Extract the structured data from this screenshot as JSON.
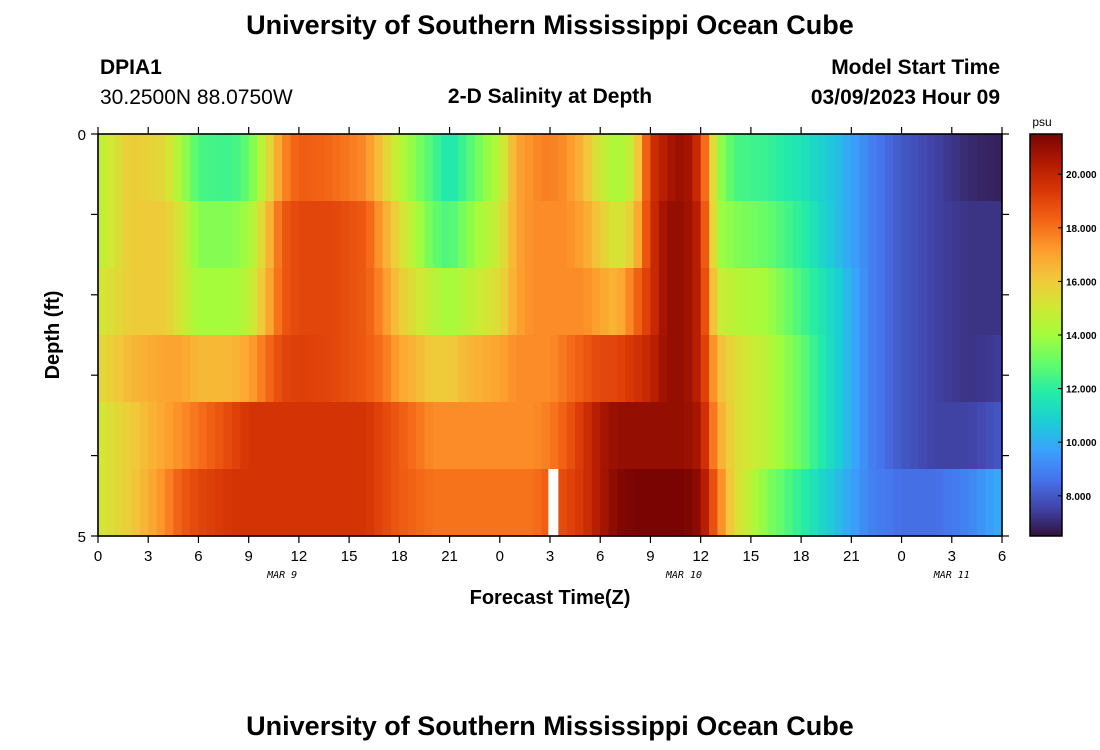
{
  "header": {
    "title": "University of Southern Mississippi Ocean Cube",
    "station_id": "DPIA1",
    "station_coords": "30.2500N  88.0750W",
    "subtitle": "2-D Salinity at Depth",
    "model_start_label": "Model Start Time",
    "model_start_value": "03/09/2023 Hour 09"
  },
  "footer": {
    "title": "University of Southern Mississippi Ocean Cube"
  },
  "chart_data": {
    "type": "heatmap",
    "xlabel": "Forecast Time(Z)",
    "ylabel": "Depth (ft)",
    "x_tick_labels": [
      "0",
      "3",
      "6",
      "9",
      "12",
      "15",
      "18",
      "21",
      "0",
      "3",
      "6",
      "9",
      "12",
      "15",
      "18",
      "21",
      "0",
      "3",
      "6"
    ],
    "date_labels": [
      {
        "label": "MAR 9",
        "hour": 11
      },
      {
        "label": "MAR 10",
        "hour": 35
      },
      {
        "label": "MAR 11",
        "hour": 51
      }
    ],
    "x_range_hours": [
      0,
      54
    ],
    "y_tick_labels": [
      "0",
      "5"
    ],
    "ylim": [
      0,
      5
    ],
    "depth_bins_ft": [
      0.25,
      1.0,
      2.0,
      3.0,
      4.0,
      4.75
    ],
    "colorbar": {
      "unit": "psu",
      "range": [
        6.5,
        21.5
      ],
      "tick_labels": [
        "8.000",
        "10.000",
        "12.000",
        "14.000",
        "16.000",
        "18.000",
        "20.000"
      ],
      "tick_values": [
        8,
        10,
        12,
        14,
        16,
        18,
        20
      ],
      "colors": [
        "#30123b",
        "#4145ab",
        "#4675ed",
        "#39a2fc",
        "#1bcfd4",
        "#24eca6",
        "#61fc6c",
        "#a4fc3b",
        "#d1e834",
        "#f3c63a",
        "#fe9b2d",
        "#f36315",
        "#d93806",
        "#b11901",
        "#7a0402"
      ]
    },
    "time_nodes_hours": [
      0,
      2,
      4,
      5,
      6,
      8,
      9,
      10,
      11,
      12,
      14,
      16,
      17,
      18,
      20,
      21,
      22,
      24,
      25,
      26,
      27,
      28,
      29,
      30,
      31,
      32,
      33,
      34,
      35,
      36,
      37,
      38,
      40,
      42,
      44,
      46,
      48,
      50,
      52,
      54
    ],
    "salinity_psu": [
      [
        14.5,
        16,
        15.5,
        14,
        12.5,
        12.3,
        13,
        15,
        17.5,
        18.5,
        18.2,
        17.5,
        16,
        14.5,
        12.5,
        11.5,
        12.5,
        14.5,
        17,
        17.5,
        17.8,
        17.4,
        16.5,
        15,
        14,
        15,
        19.5,
        20.5,
        21,
        19.5,
        14,
        12.5,
        12.2,
        11.5,
        10.5,
        9,
        8,
        7.5,
        7,
        6.8
      ],
      [
        14.5,
        16,
        16,
        15,
        13.5,
        13.5,
        14,
        16,
        18.5,
        19,
        19,
        18.5,
        17,
        15.5,
        13,
        12.5,
        13.5,
        15,
        17,
        17.5,
        17.5,
        17.5,
        17,
        16,
        15,
        16,
        19.5,
        21,
        21,
        20,
        14,
        13.5,
        13,
        12,
        10.5,
        9,
        8,
        7.5,
        7.2,
        7.2
      ],
      [
        15,
        16,
        16,
        15,
        14,
        14,
        14.5,
        16.5,
        18.5,
        19,
        19,
        18.5,
        17.5,
        16,
        14.5,
        14,
        14.5,
        15.5,
        17,
        17.5,
        17.5,
        17.5,
        17.5,
        17,
        16.5,
        18,
        19.5,
        21,
        21,
        20,
        15,
        14.5,
        14,
        12.5,
        11,
        9,
        8,
        7.5,
        7.2,
        7.2
      ],
      [
        15.5,
        16.5,
        17,
        17,
        16.5,
        16.5,
        17,
        18,
        19,
        19.2,
        19,
        18.5,
        18,
        17,
        16,
        16,
        16.5,
        17,
        17.5,
        17.5,
        17.5,
        18,
        18.5,
        19,
        19,
        19.5,
        20,
        21,
        21,
        20,
        16.5,
        15.5,
        14.5,
        13,
        11,
        9,
        8,
        7.5,
        7.2,
        7.4
      ],
      [
        15,
        16,
        17,
        17.5,
        18,
        19,
        19.5,
        19.5,
        19.5,
        19.5,
        19.5,
        19.5,
        19,
        18.5,
        17.5,
        17.5,
        17.5,
        17.5,
        17.5,
        17.5,
        17.8,
        18.5,
        19.5,
        20.5,
        21,
        21,
        21,
        21,
        21,
        20.5,
        17,
        15.5,
        14.5,
        13,
        11,
        9,
        8,
        7.5,
        7.5,
        8
      ],
      [
        15,
        16,
        17.5,
        18.5,
        19,
        19.5,
        19.5,
        19.5,
        19.5,
        19.5,
        19.5,
        19.5,
        19,
        18.5,
        18,
        18,
        18,
        18,
        18,
        18,
        18.5,
        19,
        19.5,
        20.5,
        21.3,
        21.5,
        21.5,
        21.5,
        21.5,
        21,
        18,
        15.5,
        13.5,
        12,
        10.5,
        9,
        8.5,
        8.5,
        9,
        10
      ]
    ],
    "missing_data": [
      {
        "hour_start": 26.9,
        "hour_end": 27.5,
        "depth_bin": 5
      }
    ]
  }
}
